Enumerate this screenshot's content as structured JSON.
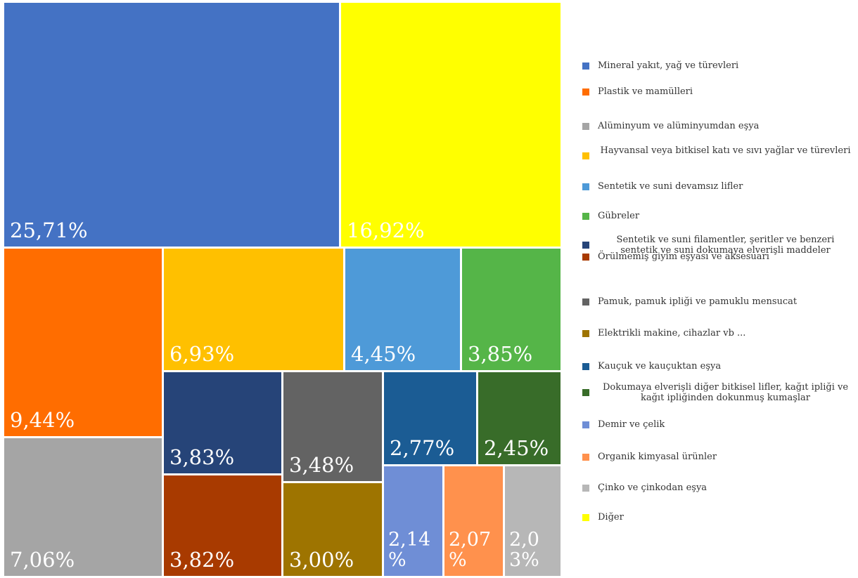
{
  "chart_data": {
    "type": "treemap",
    "title": "",
    "legend_position": "right",
    "items": [
      {
        "name": "Mineral yakıt, yağ ve türevleri",
        "value": 25.71,
        "label": "25,71%",
        "color": "#4472C4"
      },
      {
        "name": "Plastik ve mamülleri",
        "value": 9.44,
        "label": "9,44%",
        "color": "#FF6D00"
      },
      {
        "name": "Alüminyum ve alüminyumdan eşya",
        "value": 7.06,
        "label": "7,06%",
        "color": "#A5A5A5"
      },
      {
        "name": "Hayvansal veya bitkisel katı ve sıvı yağlar ve türevleri",
        "value": 6.93,
        "label": "6,93%",
        "color": "#FFC000"
      },
      {
        "name": "Sentetik ve suni devamsız lifler",
        "value": 4.45,
        "label": "4,45%",
        "color": "#4E9AD8"
      },
      {
        "name": "Gübreler",
        "value": 3.85,
        "label": "3,85%",
        "color": "#55B548"
      },
      {
        "name": "Sentetik ve suni filamentler, şeritler ve benzeri sentetik ve suni dokumaya elverişli maddeler",
        "value": 3.83,
        "label": "3,83%",
        "color": "#264478"
      },
      {
        "name": "Örülmemiş giyim eşyası ve aksesuarı",
        "value": 3.82,
        "label": "3,82%",
        "color": "#A83A00"
      },
      {
        "name": "Pamuk, pamuk ipliği ve pamuklu mensucat",
        "value": 3.48,
        "label": "3,48%",
        "color": "#636363"
      },
      {
        "name": "Elektrikli makine, cihazlar vb ...",
        "value": 3.0,
        "label": "3,00%",
        "color": "#9E7400"
      },
      {
        "name": "Kauçuk ve kauçuktan eşya",
        "value": 2.77,
        "label": "2,77%",
        "color": "#1B5C94"
      },
      {
        "name": "Dokumaya elverişli diğer bitkisel lifler, kağıt ipliği ve kağıt ipliğinden dokunmuş kumaşlar",
        "value": 2.45,
        "label": "2,45%",
        "color": "#386C29"
      },
      {
        "name": "Demir ve çelik",
        "value": 2.14,
        "label": "2,14\n%",
        "color": "#6F8ED6"
      },
      {
        "name": "Organik kimyasal ürünler",
        "value": 2.07,
        "label": "2,07\n%",
        "color": "#FF914D"
      },
      {
        "name": "Çinko ve çinkodan eşya",
        "value": 2.03,
        "label": "2,0\n3%",
        "color": "#B7B7B7"
      },
      {
        "name": "Diğer",
        "value": 16.92,
        "label": "16,92%",
        "color": "#FFFF00"
      }
    ]
  }
}
